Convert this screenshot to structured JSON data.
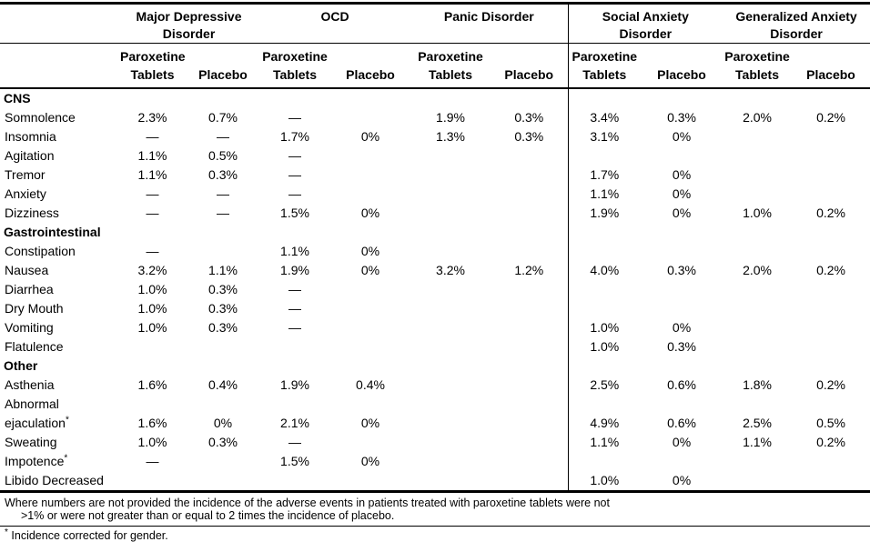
{
  "page": {
    "background": "#ffffff",
    "text_color": "#000000",
    "line_color": "#000000"
  },
  "table": {
    "column_groups": [
      {
        "line1": "Major Depressive",
        "line2": "Disorder"
      },
      {
        "line1": "OCD",
        "line2": ""
      },
      {
        "line1": "Panic Disorder",
        "line2": ""
      },
      {
        "line1": "Social Anxiety",
        "line2": "Disorder"
      },
      {
        "line1": "Generalized Anxiety",
        "line2": "Disorder"
      }
    ],
    "subheader": {
      "paroxetine_line1": "Paroxetine",
      "paroxetine_line2": "Tablets",
      "placebo": "Placebo"
    },
    "rows": [
      {
        "type": "section",
        "label": "CNS"
      },
      {
        "type": "data",
        "label": "Somnolence",
        "values": [
          "2.3%",
          "0.7%",
          "—",
          "",
          "1.9%",
          "0.3%",
          "3.4%",
          "0.3%",
          "2.0%",
          "0.2%"
        ]
      },
      {
        "type": "data",
        "label": "Insomnia",
        "values": [
          "—",
          "—",
          "1.7%",
          "0%",
          "1.3%",
          "0.3%",
          "3.1%",
          "0%",
          "",
          ""
        ]
      },
      {
        "type": "data",
        "label": "Agitation",
        "values": [
          "1.1%",
          "0.5%",
          "—",
          "",
          "",
          "",
          "",
          "",
          "",
          ""
        ]
      },
      {
        "type": "data",
        "label": "Tremor",
        "values": [
          "1.1%",
          "0.3%",
          "—",
          "",
          "",
          "",
          "1.7%",
          "0%",
          "",
          ""
        ]
      },
      {
        "type": "data",
        "label": "Anxiety",
        "values": [
          "—",
          "—",
          "—",
          "",
          "",
          "",
          "1.1%",
          "0%",
          "",
          ""
        ]
      },
      {
        "type": "data",
        "label": "Dizziness",
        "values": [
          "—",
          "—",
          "1.5%",
          "0%",
          "",
          "",
          "1.9%",
          "0%",
          "1.0%",
          "0.2%"
        ]
      },
      {
        "type": "section",
        "label": "Gastrointestinal"
      },
      {
        "type": "data",
        "label": "Constipation",
        "values": [
          "—",
          "",
          "1.1%",
          "0%",
          "",
          "",
          "",
          "",
          "",
          ""
        ]
      },
      {
        "type": "data",
        "label": "Nausea",
        "values": [
          "3.2%",
          "1.1%",
          "1.9%",
          "0%",
          "3.2%",
          "1.2%",
          "4.0%",
          "0.3%",
          "2.0%",
          "0.2%"
        ]
      },
      {
        "type": "data",
        "label": "Diarrhea",
        "values": [
          "1.0%",
          "0.3%",
          "—",
          "",
          "",
          "",
          "",
          "",
          "",
          ""
        ]
      },
      {
        "type": "data",
        "label": "Dry Mouth",
        "values": [
          "1.0%",
          "0.3%",
          "—",
          "",
          "",
          "",
          "",
          "",
          "",
          ""
        ]
      },
      {
        "type": "data",
        "label": "Vomiting",
        "values": [
          "1.0%",
          "0.3%",
          "—",
          "",
          "",
          "",
          "1.0%",
          "0%",
          "",
          ""
        ]
      },
      {
        "type": "data",
        "label": "Flatulence",
        "values": [
          "",
          "",
          "",
          "",
          "",
          "",
          "1.0%",
          "0.3%",
          "",
          ""
        ]
      },
      {
        "type": "section",
        "label": "Other"
      },
      {
        "type": "data",
        "label": "Asthenia",
        "values": [
          "1.6%",
          "0.4%",
          "1.9%",
          "0.4%",
          "",
          "",
          "2.5%",
          "0.6%",
          "1.8%",
          "0.2%"
        ]
      },
      {
        "type": "data",
        "label": "Abnormal",
        "values": [
          "",
          "",
          "",
          "",
          "",
          "",
          "",
          "",
          "",
          ""
        ]
      },
      {
        "type": "data",
        "label": "ejaculation",
        "sup": "*",
        "values": [
          "1.6%",
          "0%",
          "2.1%",
          "0%",
          "",
          "",
          "4.9%",
          "0.6%",
          "2.5%",
          "0.5%"
        ]
      },
      {
        "type": "data",
        "label": "Sweating",
        "values": [
          "1.0%",
          "0.3%",
          "—",
          "",
          "",
          "",
          "1.1%",
          "0%",
          "1.1%",
          "0.2%"
        ]
      },
      {
        "type": "data",
        "label": "Impotence",
        "sup": "*",
        "values": [
          "—",
          "",
          "1.5%",
          "0%",
          "",
          "",
          "",
          "",
          "",
          ""
        ]
      },
      {
        "type": "data",
        "label": "Libido Decreased",
        "values": [
          "",
          "",
          "",
          "",
          "",
          "",
          "1.0%",
          "0%",
          "",
          ""
        ]
      }
    ],
    "footnotes": {
      "main_line1": "Where numbers are not provided the incidence of the adverse events in patients treated with paroxetine tablets were not",
      "main_line2": ">1% or were not greater than or equal to 2 times the incidence of placebo.",
      "asterisk_marker": "*",
      "asterisk_text": "Incidence corrected for gender."
    }
  }
}
